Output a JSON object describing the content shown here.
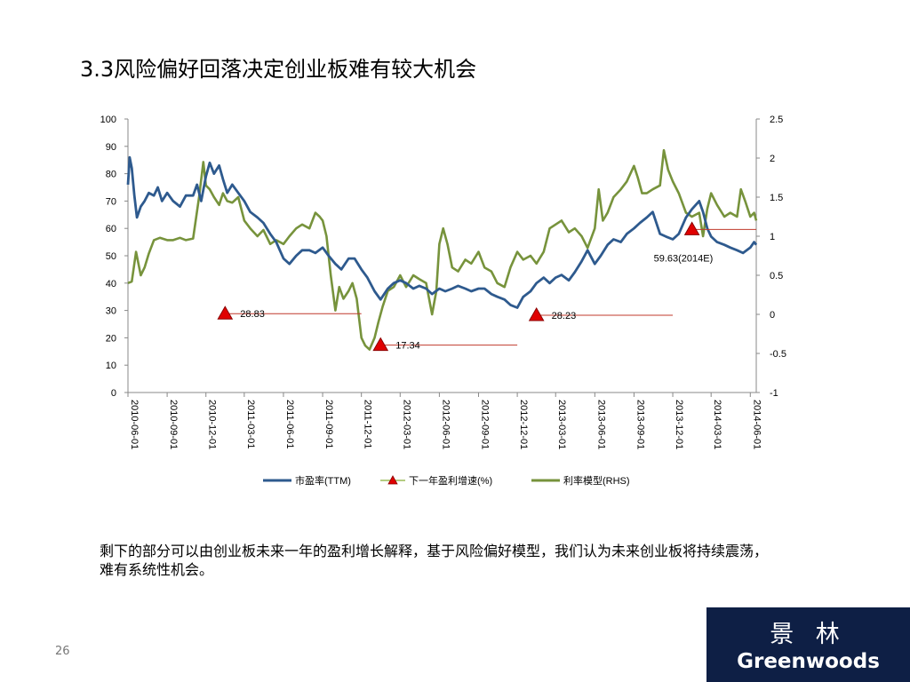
{
  "slide": {
    "title": "3.3风险偏好回落决定创业板难有较大机会",
    "body_text": "剩下的部分可以由创业板未来一年的盈利增长解释，基于风险偏好模型，我们认为未来创业板将持续震荡，难有系统性机会。",
    "page_number": "26"
  },
  "logo": {
    "cn": "景 林",
    "en": "Greenwoods"
  },
  "chart_data": {
    "type": "line",
    "left_axis": {
      "min": 0,
      "max": 100,
      "ticks": [
        "0",
        "10",
        "20",
        "30",
        "40",
        "50",
        "60",
        "70",
        "80",
        "90",
        "100"
      ]
    },
    "right_axis": {
      "min": -1,
      "max": 2.5,
      "ticks": [
        "-1",
        "-0.5",
        "0",
        "0.5",
        "1",
        "1.5",
        "2",
        "2.5"
      ]
    },
    "x_ticks": [
      "2010-06-01",
      "2010-09-01",
      "2010-12-01",
      "2011-03-01",
      "2011-06-01",
      "2011-09-01",
      "2011-12-01",
      "2012-03-01",
      "2012-06-01",
      "2012-09-01",
      "2012-12-01",
      "2013-03-01",
      "2013-06-01",
      "2013-09-01",
      "2013-12-01",
      "2014-03-01",
      "2014-06-01"
    ],
    "x_range": [
      "2010-06-01",
      "2014-06-15"
    ],
    "series": [
      {
        "name": "市盈率(TTM)",
        "axis": "left",
        "color": "#2e5a8e",
        "points": [
          [
            "2010-06-01",
            76
          ],
          [
            "2010-06-05",
            86
          ],
          [
            "2010-06-10",
            82
          ],
          [
            "2010-06-16",
            72
          ],
          [
            "2010-06-22",
            64
          ],
          [
            "2010-07-01",
            68
          ],
          [
            "2010-07-10",
            70
          ],
          [
            "2010-07-20",
            73
          ],
          [
            "2010-08-01",
            72
          ],
          [
            "2010-08-10",
            75
          ],
          [
            "2010-08-20",
            70
          ],
          [
            "2010-09-01",
            73
          ],
          [
            "2010-09-15",
            70
          ],
          [
            "2010-10-01",
            68
          ],
          [
            "2010-10-15",
            72
          ],
          [
            "2010-11-01",
            72
          ],
          [
            "2010-11-10",
            76
          ],
          [
            "2010-11-20",
            70
          ],
          [
            "2010-12-01",
            79
          ],
          [
            "2010-12-10",
            84
          ],
          [
            "2010-12-20",
            80
          ],
          [
            "2011-01-01",
            83
          ],
          [
            "2011-01-10",
            78
          ],
          [
            "2011-01-20",
            73
          ],
          [
            "2011-02-01",
            76
          ],
          [
            "2011-02-15",
            73
          ],
          [
            "2011-03-01",
            70
          ],
          [
            "2011-03-15",
            66
          ],
          [
            "2011-04-01",
            64
          ],
          [
            "2011-04-15",
            62
          ],
          [
            "2011-05-01",
            58
          ],
          [
            "2011-05-15",
            55
          ],
          [
            "2011-06-01",
            49
          ],
          [
            "2011-06-15",
            47
          ],
          [
            "2011-07-01",
            50
          ],
          [
            "2011-07-15",
            52
          ],
          [
            "2011-08-01",
            52
          ],
          [
            "2011-08-15",
            51
          ],
          [
            "2011-09-01",
            53
          ],
          [
            "2011-09-15",
            50
          ],
          [
            "2011-10-01",
            47
          ],
          [
            "2011-10-15",
            45
          ],
          [
            "2011-11-01",
            49
          ],
          [
            "2011-11-15",
            49
          ],
          [
            "2011-12-01",
            45
          ],
          [
            "2011-12-15",
            42
          ],
          [
            "2012-01-01",
            37
          ],
          [
            "2012-01-15",
            34
          ],
          [
            "2012-02-01",
            38
          ],
          [
            "2012-02-15",
            40
          ],
          [
            "2012-03-01",
            41
          ],
          [
            "2012-03-15",
            40
          ],
          [
            "2012-04-01",
            38
          ],
          [
            "2012-04-15",
            39
          ],
          [
            "2012-05-01",
            38
          ],
          [
            "2012-05-15",
            36
          ],
          [
            "2012-06-01",
            38
          ],
          [
            "2012-06-15",
            37
          ],
          [
            "2012-07-01",
            38
          ],
          [
            "2012-07-15",
            39
          ],
          [
            "2012-08-01",
            38
          ],
          [
            "2012-08-15",
            37
          ],
          [
            "2012-09-01",
            38
          ],
          [
            "2012-09-15",
            38
          ],
          [
            "2012-10-01",
            36
          ],
          [
            "2012-10-15",
            35
          ],
          [
            "2012-11-01",
            34
          ],
          [
            "2012-11-15",
            32
          ],
          [
            "2012-12-01",
            31
          ],
          [
            "2012-12-15",
            35
          ],
          [
            "2013-01-01",
            37
          ],
          [
            "2013-01-15",
            40
          ],
          [
            "2013-02-01",
            42
          ],
          [
            "2013-02-15",
            40
          ],
          [
            "2013-03-01",
            42
          ],
          [
            "2013-03-15",
            43
          ],
          [
            "2013-04-01",
            41
          ],
          [
            "2013-04-15",
            44
          ],
          [
            "2013-05-01",
            48
          ],
          [
            "2013-05-15",
            52
          ],
          [
            "2013-06-01",
            47
          ],
          [
            "2013-06-15",
            50
          ],
          [
            "2013-07-01",
            54
          ],
          [
            "2013-07-15",
            56
          ],
          [
            "2013-08-01",
            55
          ],
          [
            "2013-08-15",
            58
          ],
          [
            "2013-09-01",
            60
          ],
          [
            "2013-09-15",
            62
          ],
          [
            "2013-10-01",
            64
          ],
          [
            "2013-10-15",
            66
          ],
          [
            "2013-11-01",
            58
          ],
          [
            "2013-11-15",
            57
          ],
          [
            "2013-12-01",
            56
          ],
          [
            "2013-12-15",
            58
          ],
          [
            "2014-01-01",
            64
          ],
          [
            "2014-01-15",
            67
          ],
          [
            "2014-02-01",
            70
          ],
          [
            "2014-02-10",
            66
          ],
          [
            "2014-02-20",
            60
          ],
          [
            "2014-03-01",
            57
          ],
          [
            "2014-03-15",
            55
          ],
          [
            "2014-04-01",
            54
          ],
          [
            "2014-04-15",
            53
          ],
          [
            "2014-05-01",
            52
          ],
          [
            "2014-05-15",
            51
          ],
          [
            "2014-06-01",
            53
          ],
          [
            "2014-06-10",
            55
          ],
          [
            "2014-06-15",
            54
          ]
        ]
      },
      {
        "name": "下一年盈利增速(%)",
        "axis": "left",
        "color": "#c0392b",
        "marker_color": "#e00000",
        "points": [
          [
            "2011-01-15",
            28.83
          ],
          [
            "2012-01-15",
            17.34
          ],
          [
            "2013-01-15",
            28.23
          ],
          [
            "2014-01-15",
            59.63
          ]
        ],
        "labels": [
          "28.83",
          "17.34",
          "28.23",
          "59.63(2014E)"
        ],
        "segments": [
          [
            [
              "2011-01-15",
              28.83
            ],
            [
              "2011-12-01",
              28.83
            ]
          ],
          [
            [
              "2012-01-15",
              17.34
            ],
            [
              "2012-12-01",
              17.34
            ]
          ],
          [
            [
              "2013-01-15",
              28.23
            ],
            [
              "2013-12-01",
              28.23
            ]
          ],
          [
            [
              "2014-01-15",
              59.63
            ],
            [
              "2014-06-15",
              59.63
            ]
          ]
        ]
      },
      {
        "name": "利率模型(RHS)",
        "axis": "right",
        "color": "#77933c",
        "points": [
          [
            "2010-06-01",
            0.4
          ],
          [
            "2010-06-10",
            0.42
          ],
          [
            "2010-06-20",
            0.8
          ],
          [
            "2010-07-01",
            0.5
          ],
          [
            "2010-07-10",
            0.6
          ],
          [
            "2010-07-20",
            0.78
          ],
          [
            "2010-08-01",
            0.95
          ],
          [
            "2010-08-15",
            0.98
          ],
          [
            "2010-09-01",
            0.95
          ],
          [
            "2010-09-15",
            0.95
          ],
          [
            "2010-10-01",
            0.98
          ],
          [
            "2010-10-15",
            0.95
          ],
          [
            "2010-11-01",
            0.97
          ],
          [
            "2010-11-15",
            1.5
          ],
          [
            "2010-11-25",
            1.95
          ],
          [
            "2010-12-01",
            1.65
          ],
          [
            "2010-12-10",
            1.6
          ],
          [
            "2010-12-20",
            1.5
          ],
          [
            "2011-01-01",
            1.4
          ],
          [
            "2011-01-10",
            1.55
          ],
          [
            "2011-01-20",
            1.45
          ],
          [
            "2011-02-01",
            1.43
          ],
          [
            "2011-02-15",
            1.5
          ],
          [
            "2011-03-01",
            1.2
          ],
          [
            "2011-03-15",
            1.1
          ],
          [
            "2011-04-01",
            1.0
          ],
          [
            "2011-04-15",
            1.08
          ],
          [
            "2011-05-01",
            0.9
          ],
          [
            "2011-05-15",
            0.95
          ],
          [
            "2011-06-01",
            0.9
          ],
          [
            "2011-06-15",
            1.0
          ],
          [
            "2011-07-01",
            1.1
          ],
          [
            "2011-07-15",
            1.15
          ],
          [
            "2011-08-01",
            1.1
          ],
          [
            "2011-08-15",
            1.3
          ],
          [
            "2011-08-25",
            1.25
          ],
          [
            "2011-09-01",
            1.2
          ],
          [
            "2011-09-10",
            1.0
          ],
          [
            "2011-09-20",
            0.5
          ],
          [
            "2011-10-01",
            0.05
          ],
          [
            "2011-10-10",
            0.35
          ],
          [
            "2011-10-20",
            0.2
          ],
          [
            "2011-11-01",
            0.3
          ],
          [
            "2011-11-10",
            0.4
          ],
          [
            "2011-11-20",
            0.2
          ],
          [
            "2011-12-01",
            -0.3
          ],
          [
            "2011-12-10",
            -0.4
          ],
          [
            "2011-12-20",
            -0.45
          ],
          [
            "2012-01-01",
            -0.3
          ],
          [
            "2012-01-10",
            -0.1
          ],
          [
            "2012-01-20",
            0.1
          ],
          [
            "2012-02-01",
            0.3
          ],
          [
            "2012-02-15",
            0.35
          ],
          [
            "2012-03-01",
            0.5
          ],
          [
            "2012-03-15",
            0.35
          ],
          [
            "2012-04-01",
            0.5
          ],
          [
            "2012-04-15",
            0.45
          ],
          [
            "2012-05-01",
            0.4
          ],
          [
            "2012-05-15",
            0.0
          ],
          [
            "2012-05-25",
            0.3
          ],
          [
            "2012-06-01",
            0.9
          ],
          [
            "2012-06-10",
            1.1
          ],
          [
            "2012-06-20",
            0.9
          ],
          [
            "2012-07-01",
            0.6
          ],
          [
            "2012-07-15",
            0.55
          ],
          [
            "2012-08-01",
            0.7
          ],
          [
            "2012-08-15",
            0.65
          ],
          [
            "2012-09-01",
            0.8
          ],
          [
            "2012-09-15",
            0.6
          ],
          [
            "2012-10-01",
            0.55
          ],
          [
            "2012-10-15",
            0.4
          ],
          [
            "2012-11-01",
            0.35
          ],
          [
            "2012-11-15",
            0.6
          ],
          [
            "2012-12-01",
            0.8
          ],
          [
            "2012-12-15",
            0.7
          ],
          [
            "2013-01-01",
            0.75
          ],
          [
            "2013-01-15",
            0.65
          ],
          [
            "2013-02-01",
            0.8
          ],
          [
            "2013-02-15",
            1.1
          ],
          [
            "2013-03-01",
            1.15
          ],
          [
            "2013-03-15",
            1.2
          ],
          [
            "2013-04-01",
            1.05
          ],
          [
            "2013-04-15",
            1.1
          ],
          [
            "2013-05-01",
            1.0
          ],
          [
            "2013-05-15",
            0.85
          ],
          [
            "2013-06-01",
            1.1
          ],
          [
            "2013-06-10",
            1.6
          ],
          [
            "2013-06-20",
            1.2
          ],
          [
            "2013-07-01",
            1.3
          ],
          [
            "2013-07-15",
            1.5
          ],
          [
            "2013-08-01",
            1.6
          ],
          [
            "2013-08-15",
            1.7
          ],
          [
            "2013-09-01",
            1.9
          ],
          [
            "2013-09-10",
            1.75
          ],
          [
            "2013-09-20",
            1.55
          ],
          [
            "2013-10-01",
            1.55
          ],
          [
            "2013-10-15",
            1.6
          ],
          [
            "2013-11-01",
            1.65
          ],
          [
            "2013-11-10",
            2.1
          ],
          [
            "2013-11-20",
            1.85
          ],
          [
            "2013-12-01",
            1.7
          ],
          [
            "2013-12-15",
            1.55
          ],
          [
            "2014-01-01",
            1.3
          ],
          [
            "2014-01-15",
            1.25
          ],
          [
            "2014-02-01",
            1.3
          ],
          [
            "2014-02-10",
            1.0
          ],
          [
            "2014-02-20",
            1.35
          ],
          [
            "2014-03-01",
            1.55
          ],
          [
            "2014-03-15",
            1.4
          ],
          [
            "2014-04-01",
            1.25
          ],
          [
            "2014-04-15",
            1.3
          ],
          [
            "2014-05-01",
            1.25
          ],
          [
            "2014-05-10",
            1.6
          ],
          [
            "2014-05-20",
            1.45
          ],
          [
            "2014-06-01",
            1.25
          ],
          [
            "2014-06-10",
            1.3
          ],
          [
            "2014-06-15",
            1.2
          ]
        ]
      }
    ],
    "legend_position": "bottom",
    "grid": false
  }
}
